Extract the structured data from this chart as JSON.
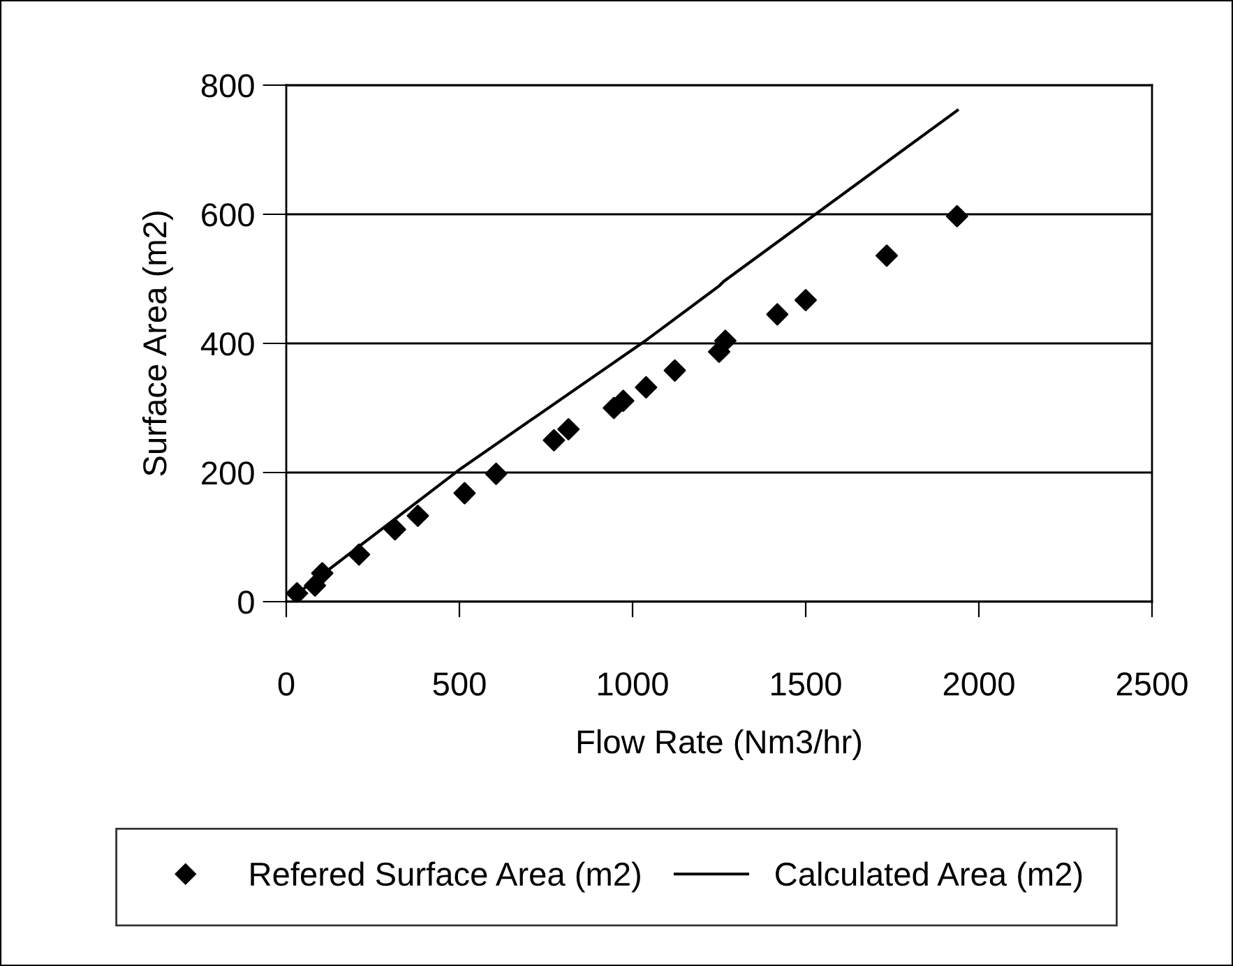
{
  "chart_data": {
    "type": "scatter",
    "xlabel": "Flow Rate (Nm3/hr)",
    "ylabel": "Surface Area (m2)",
    "xlim": [
      0,
      2500
    ],
    "xticks": [
      0,
      500,
      1000,
      1500,
      2000,
      2500
    ],
    "ylim": [
      0,
      800
    ],
    "yticks": [
      0,
      200,
      400,
      600,
      800
    ],
    "grid": "y",
    "legend": "bottom",
    "series": [
      {
        "name": "Refered Surface Area (m2)",
        "marker": "diamond",
        "color": "#000000",
        "x": [
          31,
          83,
          104,
          210,
          314,
          380,
          515,
          606,
          773,
          815,
          946,
          973,
          1039,
          1122,
          1250,
          1268,
          1418,
          1500,
          1734,
          1937
        ],
        "values": [
          13,
          25,
          44,
          73,
          112,
          133,
          168,
          198,
          250,
          267,
          300,
          311,
          332,
          358,
          387,
          404,
          445,
          467,
          536,
          597
        ]
      },
      {
        "name": "Calculated Area (m2)",
        "type": "line",
        "marker": "none",
        "line_style": "solid",
        "color": "#000000",
        "x": [
          31,
          504,
          1042,
          1250,
          1263,
          1938
        ],
        "values": [
          12,
          206,
          406,
          489,
          496,
          761
        ]
      }
    ]
  }
}
